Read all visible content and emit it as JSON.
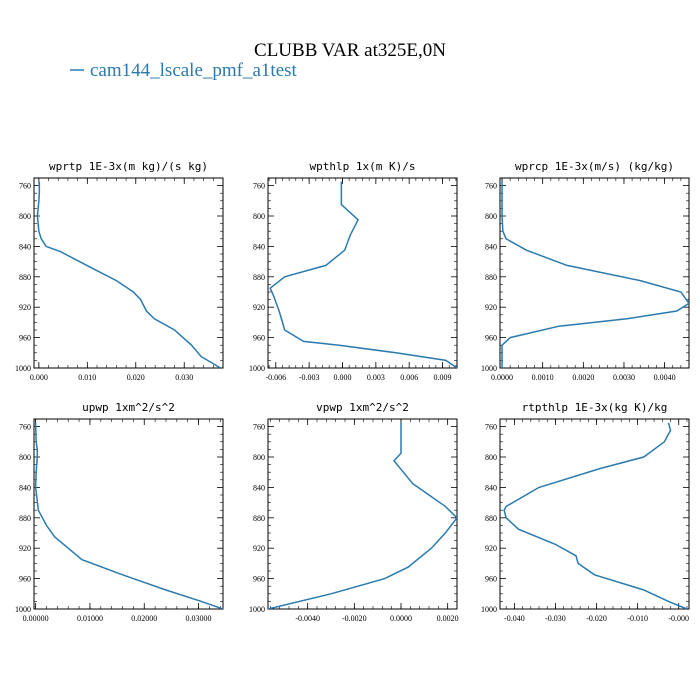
{
  "figure": {
    "title": "CLUBB VAR at325E,0N",
    "legend": {
      "label": "cam144_lscale_pmf_a1test",
      "color": "#2a7ab0"
    }
  },
  "chart_data": [
    {
      "type": "line",
      "title": "wprtp  1E-3x(m kg)/(s kg)",
      "xlim": [
        -0.001,
        0.038
      ],
      "ylim": [
        1000,
        750
      ],
      "xticks": [
        0.0,
        0.01,
        0.02,
        0.03
      ],
      "xtick_labels": [
        "0.000",
        "0.010",
        "0.020",
        "0.030"
      ],
      "yticks": [
        760,
        800,
        840,
        880,
        920,
        960,
        1000
      ],
      "series": [
        {
          "x": [
            0.0001,
            0.0001,
            0.0001,
            0.0,
            -0.0003,
            0.0,
            0.0005,
            0.0015,
            0.0045,
            0.0105,
            0.016,
            0.0195,
            0.021,
            0.0222,
            0.0238,
            0.028,
            0.0315,
            0.0335,
            0.0375
          ],
          "y": [
            755,
            760,
            770,
            780,
            800,
            820,
            830,
            840,
            847,
            867,
            885,
            900,
            910,
            925,
            935,
            950,
            970,
            985,
            1000
          ]
        }
      ]
    },
    {
      "type": "line",
      "title": "wpthlp  1x(m K)/s",
      "xlim": [
        -0.0067,
        0.0103
      ],
      "ylim": [
        1000,
        750
      ],
      "xticks": [
        -0.006,
        -0.003,
        0.0,
        0.003,
        0.006,
        0.009
      ],
      "xtick_labels": [
        "-0.006",
        "-0.003",
        "0.000",
        "0.003",
        "0.006",
        "0.009"
      ],
      "yticks": [
        760,
        800,
        840,
        880,
        920,
        960,
        1000
      ],
      "series": [
        {
          "x": [
            -0.0001,
            -0.0001,
            -0.0001,
            0.0014,
            0.0007,
            0.0002,
            -0.0015,
            -0.0052,
            -0.0065,
            -0.0062,
            -0.0057,
            -0.0052,
            -0.0035,
            -0.0003,
            0.0048,
            0.0093,
            0.0103
          ],
          "y": [
            755,
            760,
            785,
            805,
            825,
            845,
            865,
            880,
            895,
            905,
            925,
            950,
            965,
            970,
            980,
            990,
            1000
          ]
        }
      ]
    },
    {
      "type": "line",
      "title": "wprcp  1E-3x(m/s) (kg/kg)",
      "xlim": [
        -5e-05,
        0.0046
      ],
      "ylim": [
        1000,
        750
      ],
      "xticks": [
        0.0,
        0.001,
        0.002,
        0.003,
        0.004
      ],
      "xtick_labels": [
        "0.0000",
        "0.0010",
        "0.0020",
        "0.0030",
        "0.0040"
      ],
      "yticks": [
        760,
        800,
        840,
        880,
        920,
        960,
        1000
      ],
      "series": [
        {
          "x": [
            0.0,
            0.0,
            2e-05,
            0.0001,
            0.0006,
            0.0016,
            0.0034,
            0.0044,
            0.0046,
            0.0043,
            0.0031,
            0.0014,
            0.0002,
            0.0,
            0.0
          ],
          "y": [
            755,
            800,
            820,
            830,
            845,
            865,
            885,
            900,
            915,
            925,
            935,
            945,
            960,
            970,
            1000
          ]
        }
      ]
    },
    {
      "type": "line",
      "title": "upwp  1xm^2/s^2",
      "xlim": [
        -0.0003,
        0.0345
      ],
      "ylim": [
        1000,
        750
      ],
      "xticks": [
        0.0,
        0.01,
        0.02,
        0.03
      ],
      "xtick_labels": [
        "0.00000",
        "0.01000",
        "0.02000",
        "0.03000"
      ],
      "yticks": [
        760,
        800,
        840,
        880,
        920,
        960,
        1000
      ],
      "series": [
        {
          "x": [
            0.0,
            0.0001,
            0.0003,
            0.0003,
            0.0001,
            0.0,
            0.0005,
            0.002,
            0.0035,
            0.006,
            0.0085,
            0.016,
            0.024,
            0.0305,
            0.0345
          ],
          "y": [
            755,
            780,
            790,
            800,
            820,
            840,
            870,
            890,
            905,
            920,
            935,
            955,
            975,
            990,
            1000
          ]
        }
      ]
    },
    {
      "type": "line",
      "title": "vpwp  1xm^2/s^2",
      "xlim": [
        -0.0057,
        0.0024
      ],
      "ylim": [
        1000,
        750
      ],
      "xticks": [
        -0.004,
        -0.002,
        0.0,
        0.002
      ],
      "xtick_labels": [
        "-0.0040",
        "-0.0020",
        "0.0000",
        "0.0020"
      ],
      "yticks": [
        760,
        800,
        840,
        880,
        920,
        960,
        1000
      ],
      "series": [
        {
          "x": [
            0.0,
            0.0,
            -0.0003,
            0.0001,
            0.0005,
            0.0012,
            0.0019,
            0.0024,
            0.0019,
            0.0013,
            0.0003,
            -0.0007,
            -0.003,
            -0.0057
          ],
          "y": [
            755,
            795,
            805,
            820,
            835,
            850,
            865,
            880,
            900,
            920,
            945,
            960,
            980,
            1000
          ]
        }
      ]
    },
    {
      "type": "line",
      "title": "rtpthlp  1E-3x(kg K)/kg",
      "xlim": [
        -0.0435,
        0.0025
      ],
      "ylim": [
        1000,
        750
      ],
      "xticks": [
        -0.04,
        -0.03,
        -0.02,
        -0.01,
        0.0
      ],
      "xtick_labels": [
        "-0.040",
        "-0.030",
        "-0.020",
        "-0.010",
        "-0.000"
      ],
      "yticks": [
        760,
        800,
        840,
        880,
        920,
        960,
        1000
      ],
      "series": [
        {
          "x": [
            -0.0025,
            -0.002,
            -0.0035,
            -0.0085,
            -0.019,
            -0.034,
            -0.042,
            -0.0425,
            -0.042,
            -0.039,
            -0.03,
            -0.025,
            -0.0245,
            -0.0205,
            -0.0085,
            -0.0025,
            0.002
          ],
          "y": [
            755,
            765,
            780,
            800,
            815,
            840,
            865,
            870,
            880,
            895,
            915,
            930,
            940,
            955,
            975,
            990,
            1000
          ]
        }
      ]
    }
  ]
}
